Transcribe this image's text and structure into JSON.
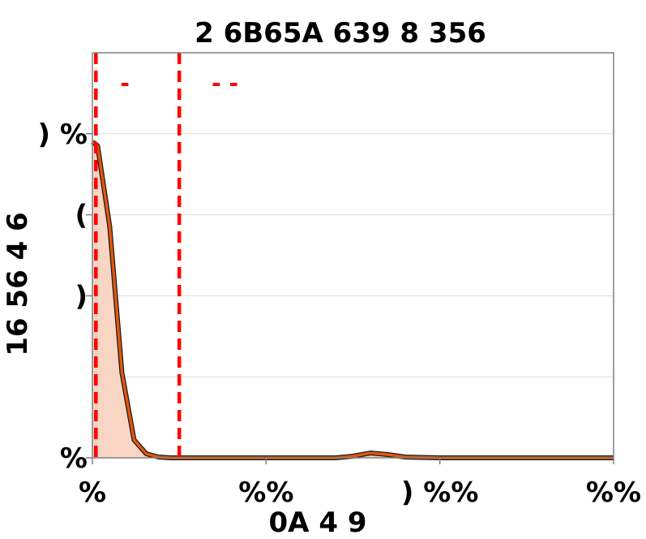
{
  "chart_data": {
    "type": "area",
    "title": "2      6B65A  639     8     356",
    "xlabel": "0A  4  9",
    "ylabel": "16  56     4   6",
    "x_ticks": [
      "%",
      "%%",
      ")  %%",
      "%%"
    ],
    "y_ticks": [
      "%",
      ")",
      "(",
      ")  %"
    ],
    "x_tick_values": [
      0,
      1,
      2,
      3
    ],
    "y_tick_values": [
      0,
      2,
      3,
      4
    ],
    "xlim": [
      0,
      3
    ],
    "ylim": [
      0,
      5
    ],
    "grid": true,
    "series": [
      {
        "fill": "#f9d5c3",
        "stroke": "#e0560f",
        "x": [
          0.0,
          0.03,
          0.1,
          0.17,
          0.24,
          0.31,
          0.38,
          0.45,
          0.55,
          0.65,
          0.8,
          1.0,
          1.2,
          1.4,
          1.5,
          1.6,
          1.7,
          1.8,
          2.0,
          2.2,
          2.4,
          2.6,
          2.8,
          3.0
        ],
        "y": [
          3.9,
          3.85,
          2.85,
          1.05,
          0.22,
          0.05,
          0.01,
          0.0,
          0.0,
          0.0,
          0.0,
          0.0,
          0.0,
          0.0,
          0.02,
          0.06,
          0.04,
          0.01,
          0.0,
          0.0,
          0.0,
          0.0,
          0.0,
          0.0
        ]
      }
    ],
    "vlines": [
      {
        "x": 0.02,
        "color": "#ff0000",
        "label": "-"
      },
      {
        "x": 0.5,
        "color": "#ff0000",
        "label": "- -"
      }
    ]
  }
}
